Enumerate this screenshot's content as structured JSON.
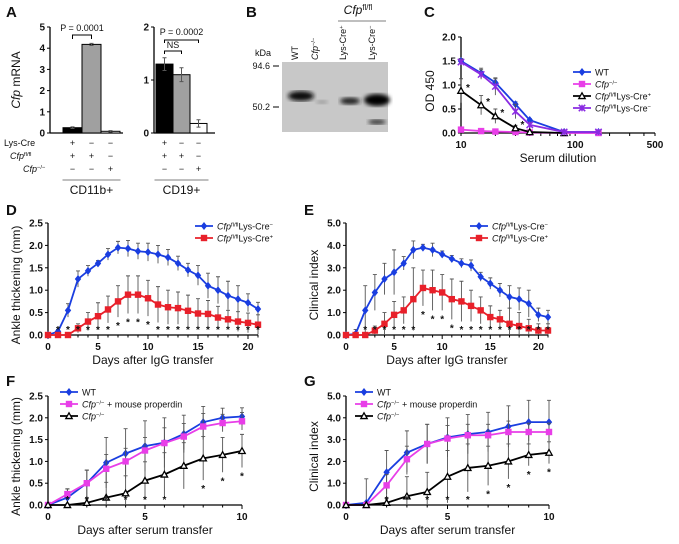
{
  "panel_labels": [
    "A",
    "B",
    "C",
    "D",
    "E",
    "F",
    "G"
  ],
  "chart_data": [
    {
      "id": "A1",
      "type": "bar",
      "ylabel": "Cfp mRNA",
      "ylim": [
        0,
        5
      ],
      "yticks": [
        0,
        1,
        2,
        3,
        4,
        5
      ],
      "values": [
        0.25,
        4.18,
        0.08
      ],
      "errors": [
        0.04,
        0.05,
        0.03
      ],
      "fills": [
        "#000000",
        "#a0a0a0",
        "#ffffff"
      ],
      "annotation": "P = 0.0001",
      "group_label": "CD11b+",
      "genotype_rows": [
        {
          "label": "Lys-Cre",
          "marks": [
            "+",
            "−",
            "−"
          ]
        },
        {
          "label": "Cfp fl/fl",
          "marks": [
            "+",
            "+",
            "−"
          ]
        },
        {
          "label": "Cfp −/−",
          "marks": [
            "−",
            "−",
            "+"
          ]
        }
      ]
    },
    {
      "id": "A2",
      "type": "bar",
      "ylim": [
        0,
        2
      ],
      "yticks": [
        0,
        1,
        2
      ],
      "values": [
        1.3,
        1.1,
        0.18
      ],
      "errors": [
        0.12,
        0.13,
        0.07
      ],
      "fills": [
        "#000000",
        "#a0a0a0",
        "#ffffff"
      ],
      "annotation": "P = 0.0002",
      "annotation2": "NS",
      "group_label": "CD19+",
      "genotype_rows": [
        {
          "marks": [
            "+",
            "−",
            "−"
          ]
        },
        {
          "marks": [
            "+",
            "+",
            "−"
          ]
        },
        {
          "marks": [
            "−",
            "−",
            "+"
          ]
        }
      ]
    },
    {
      "id": "C",
      "type": "line",
      "xscale": "log",
      "xlabel": "Serum dilution",
      "ylabel": "OD 450",
      "xlim": [
        10,
        500
      ],
      "ylim": [
        0,
        2
      ],
      "xticks": [
        10,
        100,
        500
      ],
      "yticks": [
        "0.0",
        "0.5",
        "1.0",
        "1.5",
        "2.0"
      ],
      "x": [
        10,
        15,
        20,
        30,
        40,
        80,
        160
      ],
      "series": [
        {
          "name": "WT",
          "color": "#1a3ee0",
          "marker": "diamond",
          "values": [
            1.5,
            1.25,
            1.05,
            0.6,
            0.27,
            0.02,
            0.02
          ],
          "errors": [
            0.05,
            0.1,
            0.08,
            0.05,
            0.03,
            0.01,
            0.01
          ],
          "stars": []
        },
        {
          "name": "Cfp−/−",
          "color": "#e83ee8",
          "marker": "square",
          "values": [
            0.07,
            0.04,
            0.03,
            0.02,
            0.01,
            0.0,
            0.0
          ],
          "errors": [
            0.02,
            0.02,
            0.02,
            0.01,
            0.01,
            0,
            0
          ],
          "stars": []
        },
        {
          "name": "Cfp fl/fl Lys-Cre+",
          "color": "#000000",
          "marker": "triangle",
          "values": [
            0.88,
            0.58,
            0.35,
            0.1,
            0.02,
            0.0,
            null
          ],
          "errors": [
            0.25,
            0.2,
            0.15,
            0.06,
            0.02,
            0,
            0
          ],
          "stars": [
            10,
            15,
            20,
            30
          ]
        },
        {
          "name": "Cfp fl/fl Lys-Cre−",
          "color": "#8a2be2",
          "marker": "cross",
          "values": [
            1.48,
            1.22,
            0.97,
            0.45,
            0.17,
            0.02,
            0.02
          ],
          "errors": [
            0.05,
            0.1,
            0.18,
            0.15,
            0.05,
            0.01,
            0.01
          ],
          "stars": []
        }
      ],
      "legend": [
        [
          {
            "t": "WT"
          }
        ],
        [
          {
            "t": "Cfp",
            "i": 1
          },
          {
            "t": "−/−",
            "s": 1
          }
        ],
        [
          {
            "t": "Cfp",
            "i": 1
          },
          {
            "t": "fl/fl",
            "s": 1
          },
          {
            "t": "Lys-Cre"
          },
          {
            "t": "+",
            "s": 1
          }
        ],
        [
          {
            "t": "Cfp",
            "i": 1
          },
          {
            "t": "fl/fl",
            "s": 1
          },
          {
            "t": "Lys-Cre"
          },
          {
            "t": "−",
            "s": 1
          }
        ]
      ],
      "legend_placement": "right"
    },
    {
      "id": "D",
      "type": "line",
      "xlabel": "Days after IgG transfer",
      "ylabel": "Ankle thickening (mm)",
      "xlim": [
        0,
        21
      ],
      "ylim": [
        0,
        2.5
      ],
      "xticks": [
        0,
        5,
        10,
        15,
        20
      ],
      "yticks": [
        "0.0",
        "0.5",
        "1.0",
        "1.5",
        "2.0",
        "2.5"
      ],
      "x": [
        0,
        1,
        2,
        3,
        4,
        5,
        6,
        7,
        8,
        9,
        10,
        11,
        12,
        13,
        14,
        15,
        16,
        17,
        18,
        19,
        20,
        21
      ],
      "series": [
        {
          "name": "Cfp fl/fl Lys-Cre−",
          "color": "#1a3ee0",
          "marker": "diamond",
          "values": [
            0,
            0.08,
            0.55,
            1.25,
            1.43,
            1.6,
            1.8,
            1.95,
            1.93,
            1.87,
            1.85,
            1.8,
            1.73,
            1.6,
            1.45,
            1.33,
            1.1,
            1.0,
            0.88,
            0.8,
            0.72,
            0.58
          ],
          "errors": [
            0,
            0.04,
            0.15,
            0.18,
            0.12,
            0.06,
            0.13,
            0.14,
            0.18,
            0.18,
            0.2,
            0.2,
            0.18,
            0.16,
            0.15,
            0.22,
            0.28,
            0.3,
            0.32,
            0.3,
            0.2,
            0.15
          ],
          "stars": []
        },
        {
          "name": "Cfp fl/fl Lys-Cre+",
          "color": "#e8202a",
          "marker": "square",
          "values": [
            0,
            0,
            0,
            0.15,
            0.3,
            0.42,
            0.57,
            0.75,
            0.9,
            0.9,
            0.82,
            0.68,
            0.62,
            0.6,
            0.54,
            0.48,
            0.47,
            0.39,
            0.35,
            0.3,
            0.27,
            0.23
          ],
          "errors": [
            0,
            0,
            0,
            0.1,
            0.2,
            0.3,
            0.3,
            0.35,
            0.42,
            0.42,
            0.4,
            0.4,
            0.38,
            0.36,
            0.35,
            0.33,
            0.3,
            0.25,
            0.2,
            0.22,
            0.22,
            0.22
          ],
          "stars": [
            1,
            2,
            3,
            4,
            5,
            6,
            7,
            8,
            9,
            10,
            11,
            12,
            13,
            14,
            15,
            16,
            17,
            18,
            19,
            20,
            21
          ]
        }
      ],
      "legend": [
        [
          {
            "t": "Cfp",
            "i": 1
          },
          {
            "t": "fl/fl",
            "s": 1
          },
          {
            "t": "Lys-Cre"
          },
          {
            "t": "−",
            "s": 1
          }
        ],
        [
          {
            "t": "Cfp",
            "i": 1
          },
          {
            "t": "fl/fl",
            "s": 1
          },
          {
            "t": "Lys-Cre"
          },
          {
            "t": "+",
            "s": 1
          }
        ]
      ],
      "legend_placement": "top-right"
    },
    {
      "id": "E",
      "type": "line",
      "xlabel": "Days after IgG transfer",
      "ylabel": "Clinical index",
      "xlim": [
        0,
        21
      ],
      "ylim": [
        0,
        5
      ],
      "xticks": [
        0,
        5,
        10,
        15,
        20
      ],
      "yticks": [
        "0.0",
        "1.0",
        "2.0",
        "3.0",
        "4.0",
        "5.0"
      ],
      "x": [
        0,
        1,
        2,
        3,
        4,
        5,
        6,
        7,
        8,
        9,
        10,
        11,
        12,
        13,
        14,
        15,
        16,
        17,
        18,
        19,
        20,
        21
      ],
      "series": [
        {
          "name": "Cfp fl/fl Lys-Cre−",
          "color": "#1a3ee0",
          "marker": "diamond",
          "values": [
            0,
            0.05,
            1.1,
            1.9,
            2.5,
            2.8,
            3.2,
            3.8,
            3.9,
            3.8,
            3.6,
            3.4,
            3.2,
            3.1,
            2.6,
            2.3,
            2.0,
            1.7,
            1.6,
            1.4,
            0.9,
            0.8
          ],
          "errors": [
            0,
            0.2,
            1.1,
            0.8,
            0.7,
            1.0,
            0.3,
            0.4,
            0.15,
            0.3,
            0.15,
            0.15,
            0.2,
            0.25,
            0.2,
            0.25,
            0.3,
            0.5,
            0.5,
            0.6,
            0.3,
            0.3
          ],
          "stars": []
        },
        {
          "name": "Cfp fl/fl Lys-Cre+",
          "color": "#e8202a",
          "marker": "square",
          "values": [
            0,
            0,
            0,
            0.2,
            0.5,
            0.9,
            1.1,
            1.6,
            2.1,
            2.0,
            1.9,
            1.6,
            1.5,
            1.3,
            1.1,
            0.8,
            0.7,
            0.5,
            0.4,
            0.3,
            0.2,
            0.2
          ],
          "errors": [
            0,
            0,
            0,
            0.2,
            0.5,
            0.6,
            0.6,
            1.4,
            0.8,
            0.9,
            0.8,
            0.9,
            0.9,
            0.7,
            0.6,
            0.5,
            0.4,
            0.7,
            0.6,
            0.4,
            0.3,
            0.3
          ],
          "stars": [
            2,
            3,
            4,
            5,
            6,
            7,
            8,
            9,
            10,
            11,
            12,
            13,
            14,
            15,
            16,
            17,
            18,
            19,
            20,
            21
          ]
        }
      ],
      "legend": [
        [
          {
            "t": "Cfp",
            "i": 1
          },
          {
            "t": "fl/fl",
            "s": 1
          },
          {
            "t": "Lys-Cre"
          },
          {
            "t": "−",
            "s": 1
          }
        ],
        [
          {
            "t": "Cfp",
            "i": 1
          },
          {
            "t": "fl/fl",
            "s": 1
          },
          {
            "t": "Lys-Cre"
          },
          {
            "t": "+",
            "s": 1
          }
        ]
      ],
      "legend_placement": "top-right"
    },
    {
      "id": "F",
      "type": "line",
      "xlabel": "Days after serum transfer",
      "ylabel": "Ankle thickening (mm)",
      "xlim": [
        0,
        10
      ],
      "ylim": [
        0,
        2.5
      ],
      "xticks": [
        0,
        5,
        10
      ],
      "yticks": [
        "0.0",
        "0.5",
        "1.0",
        "1.5",
        "2.0",
        "2.5"
      ],
      "x": [
        0,
        1,
        2,
        3,
        4,
        5,
        6,
        7,
        8,
        9,
        10
      ],
      "series": [
        {
          "name": "WT",
          "color": "#1a3ee0",
          "marker": "diamond",
          "values": [
            0,
            0.17,
            0.5,
            0.97,
            1.18,
            1.35,
            1.43,
            1.63,
            1.9,
            2.0,
            2.03
          ],
          "errors": [
            0,
            0.2,
            0.3,
            0.58,
            0.57,
            0.58,
            0.57,
            0.43,
            0.36,
            0.22,
            0.2
          ],
          "stars": []
        },
        {
          "name": "Cfp−/− + mouse properdin",
          "color": "#e83ee8",
          "marker": "square",
          "values": [
            0,
            0.25,
            0.5,
            0.83,
            1.0,
            1.25,
            1.42,
            1.57,
            1.8,
            1.88,
            1.92
          ],
          "errors": [
            0,
            0.12,
            0.3,
            0.33,
            0.3,
            0.3,
            0.35,
            0.3,
            0.3,
            0.2,
            0.2
          ],
          "stars": []
        },
        {
          "name": "Cfp−/−",
          "color": "#000000",
          "marker": "triangle",
          "values": [
            0,
            0,
            0.05,
            0.17,
            0.27,
            0.56,
            0.7,
            0.9,
            1.07,
            1.15,
            1.24
          ],
          "errors": [
            0,
            0.03,
            0.1,
            0.35,
            0.4,
            0.43,
            0.5,
            0.53,
            0.5,
            0.4,
            0.38
          ],
          "stars": [
            1,
            2,
            3,
            4,
            5,
            6,
            8,
            9,
            10
          ]
        }
      ],
      "legend": [
        [
          {
            "t": "WT"
          }
        ],
        [
          {
            "t": "Cfp",
            "i": 1
          },
          {
            "t": "−/−",
            "s": 1
          },
          {
            "t": " + mouse properdin"
          }
        ],
        [
          {
            "t": "Cfp",
            "i": 1
          },
          {
            "t": "−/−",
            "s": 1
          }
        ]
      ],
      "legend_placement": "top-left"
    },
    {
      "id": "G",
      "type": "line",
      "xlabel": "Days after serum transfer",
      "ylabel": "Clinical index",
      "xlim": [
        0,
        10
      ],
      "ylim": [
        0,
        5
      ],
      "xticks": [
        0,
        5,
        10
      ],
      "yticks": [
        "0.0",
        "1.0",
        "2.0",
        "3.0",
        "4.0",
        "5.0"
      ],
      "x": [
        0,
        1,
        2,
        3,
        4,
        5,
        6,
        7,
        8,
        9,
        10
      ],
      "series": [
        {
          "name": "WT",
          "color": "#1a3ee0",
          "marker": "diamond",
          "values": [
            0,
            0.1,
            1.5,
            2.4,
            2.8,
            3.1,
            3.25,
            3.35,
            3.6,
            3.8,
            3.8
          ],
          "errors": [
            0,
            1.1,
            1.0,
            1.0,
            0.9,
            0.9,
            0.9,
            0.9,
            0.95,
            1.0,
            1.0
          ],
          "stars": []
        },
        {
          "name": "Cfp−/− + mouse properdin",
          "color": "#e83ee8",
          "marker": "square",
          "values": [
            0,
            0,
            0.9,
            2.1,
            2.8,
            3.05,
            3.2,
            3.2,
            3.35,
            3.35,
            3.35
          ],
          "errors": [
            0,
            0,
            0.5,
            0.6,
            0.9,
            0.6,
            0.5,
            0.5,
            0.5,
            0.4,
            0.4
          ],
          "stars": []
        },
        {
          "name": "Cfp−/−",
          "color": "#000000",
          "marker": "triangle",
          "values": [
            0,
            0,
            0.1,
            0.4,
            0.6,
            1.3,
            1.7,
            1.8,
            2.0,
            2.3,
            2.4
          ],
          "errors": [
            0,
            0,
            0.2,
            0.9,
            0.9,
            1.2,
            1.1,
            0.9,
            0.8,
            0.5,
            0.5
          ],
          "stars": [
            2,
            3,
            4,
            5,
            6,
            7,
            8,
            9,
            10
          ]
        }
      ],
      "legend": [
        [
          {
            "t": "WT"
          }
        ],
        [
          {
            "t": "Cfp",
            "i": 1
          },
          {
            "t": "−/−",
            "s": 1
          },
          {
            "t": " + mouse properdin"
          }
        ],
        [
          {
            "t": "Cfp",
            "i": 1
          },
          {
            "t": "−/−",
            "s": 1
          }
        ]
      ],
      "legend_placement": "top-left"
    }
  ],
  "blot": {
    "unit": "kDa",
    "markers": [
      "94.6",
      "50.2"
    ],
    "header": [
      {
        "t": "Cfp",
        "i": 1
      },
      {
        "t": "fl/fl",
        "s": 1
      }
    ],
    "lanes": [
      [
        {
          "t": "WT"
        }
      ],
      [
        {
          "t": "Cfp",
          "i": 1
        },
        {
          "t": "−/−",
          "s": 1
        }
      ],
      [
        {
          "t": "Lys-Cre"
        },
        {
          "t": "+",
          "s": 1
        }
      ],
      [
        {
          "t": "Lys-Cre"
        },
        {
          "t": "−",
          "s": 1
        }
      ]
    ]
  }
}
